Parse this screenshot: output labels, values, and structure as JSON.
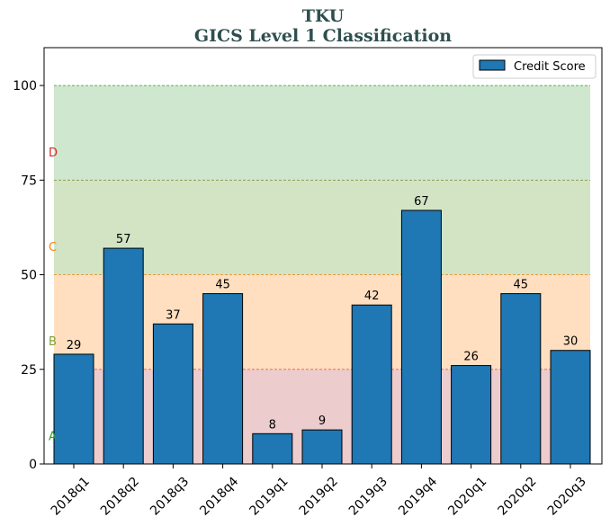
{
  "chart_data": {
    "type": "bar",
    "title": "TKU",
    "subtitle": "GICS Level 1 Classification",
    "xlabel": "",
    "ylabel": "",
    "ylim": [
      0,
      110
    ],
    "yticks": [
      0,
      25,
      50,
      75,
      100
    ],
    "categories": [
      "2018q1",
      "2018q2",
      "2018q3",
      "2018q4",
      "2019q1",
      "2019q2",
      "2019q3",
      "2019q4",
      "2020q1",
      "2020q2",
      "2020q3"
    ],
    "series": [
      {
        "name": "Credit Score",
        "values": [
          29,
          57,
          37,
          45,
          8,
          9,
          42,
          67,
          26,
          45,
          30
        ],
        "color": "#1f77b4"
      }
    ],
    "bands": [
      {
        "label": "A",
        "from": 0,
        "to": 25,
        "color": "#d99a9c",
        "label_color": "#2ca02c",
        "line_color": "#d62728"
      },
      {
        "label": "B",
        "from": 25,
        "to": 50,
        "color": "#ffbf7f",
        "label_color": "#7f9f2f",
        "line_color": "#ff7f0e"
      },
      {
        "label": "C",
        "from": 50,
        "to": 75,
        "color": "#a6c98a",
        "label_color": "#ff7f0e",
        "line_color": "#7f7f1f"
      },
      {
        "label": "D",
        "from": 75,
        "to": 100,
        "color": "#9fcf9f",
        "label_color": "#d62728",
        "line_color": "#2ca02c"
      }
    ],
    "legend": "top-right",
    "grid": false
  }
}
